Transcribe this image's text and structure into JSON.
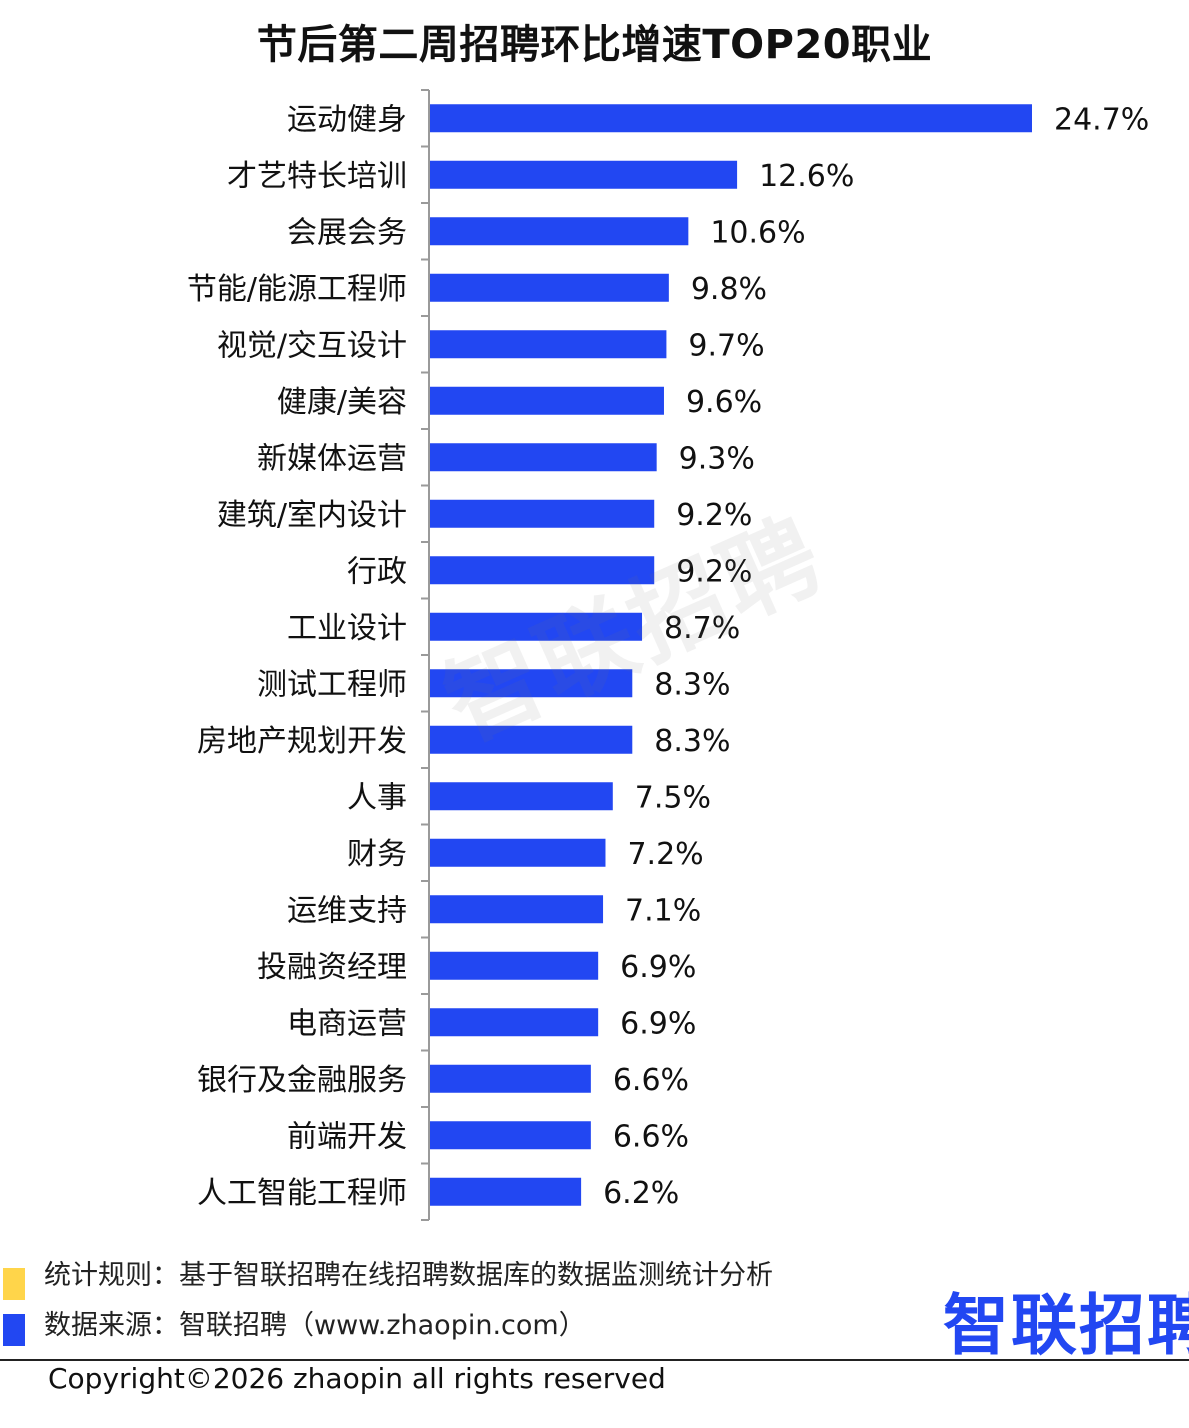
{
  "colors": {
    "bar": "#2247f2",
    "axis": "#9a9a9a",
    "square_yellow": "#ffd54a",
    "square_blue": "#2247f2",
    "logo": "#2247f2"
  },
  "chart_data": {
    "type": "bar",
    "orientation": "horizontal",
    "title": "节后第二周招聘环比增速TOP20职业",
    "categories": [
      "运动健身",
      "才艺特长培训",
      "会展会务",
      "节能/能源工程师",
      "视觉/交互设计",
      "健康/美容",
      "新媒体运营",
      "建筑/室内设计",
      "行政",
      "工业设计",
      "测试工程师",
      "房地产规划开发",
      "人事",
      "财务",
      "运维支持",
      "投融资经理",
      "电商运营",
      "银行及金融服务",
      "前端开发",
      "人工智能工程师"
    ],
    "values": [
      24.7,
      12.6,
      10.6,
      9.8,
      9.7,
      9.6,
      9.3,
      9.2,
      9.2,
      8.7,
      8.3,
      8.3,
      7.5,
      7.2,
      7.1,
      6.9,
      6.9,
      6.6,
      6.6,
      6.2
    ],
    "value_labels": [
      "24.7%",
      "12.6%",
      "10.6%",
      "9.8%",
      "9.7%",
      "9.6%",
      "9.3%",
      "9.2%",
      "9.2%",
      "8.7%",
      "8.3%",
      "8.3%",
      "7.5%",
      "7.2%",
      "7.1%",
      "6.9%",
      "6.9%",
      "6.6%",
      "6.6%",
      "6.2%"
    ],
    "unit": "%",
    "xlabel": "",
    "ylabel": "",
    "xlim": [
      0,
      24.7
    ],
    "grid": false,
    "legend": "none"
  },
  "watermark": "智联招聘",
  "notes": {
    "rule": "统计规则：基于智联招聘在线招聘数据库的数据监测统计分析",
    "source": "数据来源：智联招聘（www.zhaopin.com）"
  },
  "logo_text": "智联招聘",
  "copyright": "Copyright©2026 zhaopin all rights reserved"
}
